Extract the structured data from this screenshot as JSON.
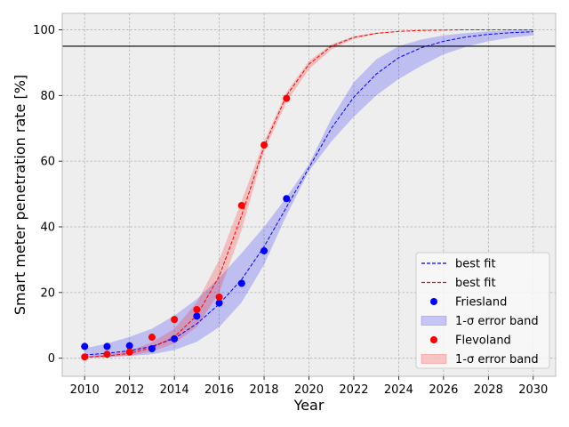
{
  "chart_data": {
    "type": "scatter",
    "xlabel": "Year",
    "ylabel": "Smart meter penetration rate [%]",
    "xlim": [
      2009,
      2031
    ],
    "ylim": [
      -5.5,
      105
    ],
    "xticks": [
      2010,
      2012,
      2014,
      2016,
      2018,
      2020,
      2022,
      2024,
      2026,
      2028,
      2030
    ],
    "yticks": [
      0,
      20,
      40,
      60,
      80,
      100
    ],
    "grid": true,
    "legend_position": "bottom-right",
    "reference_line": {
      "y": 95,
      "color": "#000000"
    },
    "colors": {
      "friesland": "#0000ff",
      "flevoland": "#ff0000",
      "background": "#eeeeee"
    },
    "series": [
      {
        "name": "Friesland",
        "color": "#0000ff",
        "points": [
          {
            "x": 2010,
            "y": 3.6
          },
          {
            "x": 2011,
            "y": 3.6
          },
          {
            "x": 2012,
            "y": 3.8
          },
          {
            "x": 2013,
            "y": 2.9
          },
          {
            "x": 2014,
            "y": 5.9
          },
          {
            "x": 2015,
            "y": 12.8
          },
          {
            "x": 2016,
            "y": 16.8
          },
          {
            "x": 2017,
            "y": 22.8
          },
          {
            "x": 2018,
            "y": 32.7
          },
          {
            "x": 2019,
            "y": 48.6
          }
        ],
        "fit": [
          {
            "x": 2010,
            "y": 1.0
          },
          {
            "x": 2011,
            "y": 1.5
          },
          {
            "x": 2012,
            "y": 2.3
          },
          {
            "x": 2013,
            "y": 3.6
          },
          {
            "x": 2014,
            "y": 6.0
          },
          {
            "x": 2015,
            "y": 10.5
          },
          {
            "x": 2016,
            "y": 16.5
          },
          {
            "x": 2017,
            "y": 24.0
          },
          {
            "x": 2018,
            "y": 34.0
          },
          {
            "x": 2019,
            "y": 46.0
          },
          {
            "x": 2020,
            "y": 58.0
          },
          {
            "x": 2021,
            "y": 70.0
          },
          {
            "x": 2022,
            "y": 79.5
          },
          {
            "x": 2023,
            "y": 86.5
          },
          {
            "x": 2024,
            "y": 91.5
          },
          {
            "x": 2025,
            "y": 94.5
          },
          {
            "x": 2026,
            "y": 96.5
          },
          {
            "x": 2027,
            "y": 97.8
          },
          {
            "x": 2028,
            "y": 98.6
          },
          {
            "x": 2029,
            "y": 99.1
          },
          {
            "x": 2030,
            "y": 99.4
          }
        ],
        "band_upper": [
          {
            "x": 2010,
            "y": 3.0
          },
          {
            "x": 2011,
            "y": 4.5
          },
          {
            "x": 2012,
            "y": 6.5
          },
          {
            "x": 2013,
            "y": 9.0
          },
          {
            "x": 2014,
            "y": 13.0
          },
          {
            "x": 2015,
            "y": 18.0
          },
          {
            "x": 2016,
            "y": 24.5
          },
          {
            "x": 2017,
            "y": 32.0
          },
          {
            "x": 2018,
            "y": 40.0
          },
          {
            "x": 2019,
            "y": 49.0
          },
          {
            "x": 2020,
            "y": 59.0
          },
          {
            "x": 2021,
            "y": 73.0
          },
          {
            "x": 2022,
            "y": 84.0
          },
          {
            "x": 2023,
            "y": 91.0
          },
          {
            "x": 2024,
            "y": 95.0
          },
          {
            "x": 2025,
            "y": 97.0
          },
          {
            "x": 2026,
            "y": 98.3
          },
          {
            "x": 2027,
            "y": 99.0
          },
          {
            "x": 2028,
            "y": 99.5
          },
          {
            "x": 2029,
            "y": 99.8
          },
          {
            "x": 2030,
            "y": 100.0
          }
        ],
        "band_lower": [
          {
            "x": 2010,
            "y": 0.2
          },
          {
            "x": 2011,
            "y": 0.4
          },
          {
            "x": 2012,
            "y": 0.7
          },
          {
            "x": 2013,
            "y": 1.2
          },
          {
            "x": 2014,
            "y": 2.5
          },
          {
            "x": 2015,
            "y": 5.0
          },
          {
            "x": 2016,
            "y": 9.5
          },
          {
            "x": 2017,
            "y": 17.0
          },
          {
            "x": 2018,
            "y": 28.5
          },
          {
            "x": 2019,
            "y": 43.5
          },
          {
            "x": 2020,
            "y": 57.0
          },
          {
            "x": 2021,
            "y": 66.0
          },
          {
            "x": 2022,
            "y": 73.5
          },
          {
            "x": 2023,
            "y": 80.0
          },
          {
            "x": 2024,
            "y": 85.0
          },
          {
            "x": 2025,
            "y": 89.0
          },
          {
            "x": 2026,
            "y": 92.5
          },
          {
            "x": 2027,
            "y": 94.8
          },
          {
            "x": 2028,
            "y": 96.5
          },
          {
            "x": 2029,
            "y": 97.6
          },
          {
            "x": 2030,
            "y": 98.3
          }
        ]
      },
      {
        "name": "Flevoland",
        "color": "#ff0000",
        "points": [
          {
            "x": 2010,
            "y": 0.4
          },
          {
            "x": 2011,
            "y": 1.2
          },
          {
            "x": 2012,
            "y": 1.9
          },
          {
            "x": 2013,
            "y": 6.4
          },
          {
            "x": 2014,
            "y": 11.8
          },
          {
            "x": 2015,
            "y": 14.8
          },
          {
            "x": 2016,
            "y": 18.6
          },
          {
            "x": 2017,
            "y": 46.5
          },
          {
            "x": 2018,
            "y": 64.9
          },
          {
            "x": 2019,
            "y": 79.1
          }
        ],
        "fit": [
          {
            "x": 2010,
            "y": 0.3
          },
          {
            "x": 2011,
            "y": 0.7
          },
          {
            "x": 2012,
            "y": 1.5
          },
          {
            "x": 2013,
            "y": 3.2
          },
          {
            "x": 2014,
            "y": 6.5
          },
          {
            "x": 2015,
            "y": 13.0
          },
          {
            "x": 2016,
            "y": 25.0
          },
          {
            "x": 2017,
            "y": 43.5
          },
          {
            "x": 2018,
            "y": 64.5
          },
          {
            "x": 2019,
            "y": 80.0
          },
          {
            "x": 2020,
            "y": 89.5
          },
          {
            "x": 2021,
            "y": 95.0
          },
          {
            "x": 2022,
            "y": 97.7
          },
          {
            "x": 2023,
            "y": 98.9
          },
          {
            "x": 2024,
            "y": 99.5
          },
          {
            "x": 2025,
            "y": 99.8
          },
          {
            "x": 2026,
            "y": 99.9
          },
          {
            "x": 2027,
            "y": 100.0
          },
          {
            "x": 2028,
            "y": 100.0
          },
          {
            "x": 2029,
            "y": 100.0
          },
          {
            "x": 2030,
            "y": 100.0
          }
        ],
        "band_upper": [
          {
            "x": 2010,
            "y": 0.6
          },
          {
            "x": 2011,
            "y": 1.2
          },
          {
            "x": 2012,
            "y": 2.4
          },
          {
            "x": 2013,
            "y": 4.8
          },
          {
            "x": 2014,
            "y": 9.0
          },
          {
            "x": 2015,
            "y": 17.0
          },
          {
            "x": 2016,
            "y": 30.0
          },
          {
            "x": 2017,
            "y": 48.0
          },
          {
            "x": 2018,
            "y": 66.0
          },
          {
            "x": 2019,
            "y": 81.0
          },
          {
            "x": 2020,
            "y": 90.5
          },
          {
            "x": 2021,
            "y": 95.6
          },
          {
            "x": 2022,
            "y": 98.0
          },
          {
            "x": 2023,
            "y": 99.1
          },
          {
            "x": 2024,
            "y": 99.6
          },
          {
            "x": 2025,
            "y": 99.8
          },
          {
            "x": 2026,
            "y": 99.9
          },
          {
            "x": 2027,
            "y": 100.0
          },
          {
            "x": 2028,
            "y": 100.0
          },
          {
            "x": 2029,
            "y": 100.0
          },
          {
            "x": 2030,
            "y": 100.0
          }
        ],
        "band_lower": [
          {
            "x": 2010,
            "y": 0.1
          },
          {
            "x": 2011,
            "y": 0.3
          },
          {
            "x": 2012,
            "y": 0.8
          },
          {
            "x": 2013,
            "y": 2.0
          },
          {
            "x": 2014,
            "y": 4.5
          },
          {
            "x": 2015,
            "y": 9.5
          },
          {
            "x": 2016,
            "y": 20.0
          },
          {
            "x": 2017,
            "y": 39.0
          },
          {
            "x": 2018,
            "y": 63.0
          },
          {
            "x": 2019,
            "y": 78.0
          },
          {
            "x": 2020,
            "y": 88.0
          },
          {
            "x": 2021,
            "y": 94.0
          },
          {
            "x": 2022,
            "y": 97.2
          },
          {
            "x": 2023,
            "y": 98.7
          },
          {
            "x": 2024,
            "y": 99.4
          },
          {
            "x": 2025,
            "y": 99.7
          },
          {
            "x": 2026,
            "y": 99.9
          },
          {
            "x": 2027,
            "y": 100.0
          },
          {
            "x": 2028,
            "y": 100.0
          },
          {
            "x": 2029,
            "y": 100.0
          },
          {
            "x": 2030,
            "y": 100.0
          }
        ]
      }
    ],
    "legend": [
      {
        "label": "best fit",
        "kind": "dashed-line",
        "color": "#0000ff"
      },
      {
        "label": "best fit",
        "kind": "dashed-line",
        "color": "#ff0000"
      },
      {
        "label": "Friesland",
        "kind": "marker",
        "color": "#0000ff"
      },
      {
        "label": "1-σ error band",
        "kind": "band",
        "color": "#0000ff"
      },
      {
        "label": "Flevoland",
        "kind": "marker",
        "color": "#ff0000"
      },
      {
        "label": "1-σ error band",
        "kind": "band",
        "color": "#ff0000"
      }
    ]
  }
}
